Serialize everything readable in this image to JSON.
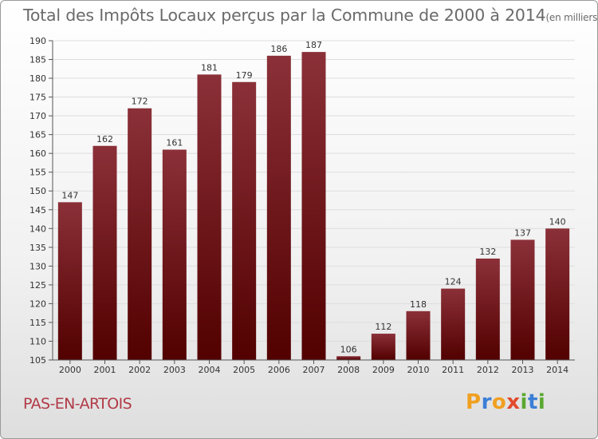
{
  "title": "Total des Impôts Locaux perçus par la Commune de 2000 à 2014",
  "title_unit": "(en milliers d'€)",
  "commune": "PAS-EN-ARTOIS",
  "logo": {
    "text": "Proxiti",
    "letters": [
      {
        "char": "P",
        "color": "#f0a020"
      },
      {
        "char": "r",
        "color": "#3b7fd6"
      },
      {
        "char": "o",
        "color": "#f0a020"
      },
      {
        "char": "x",
        "color": "#e24a2c"
      },
      {
        "char": "i",
        "color": "#5aa832"
      },
      {
        "char": "t",
        "color": "#3b7fd6"
      },
      {
        "char": "i",
        "color": "#5aa832"
      }
    ]
  },
  "colors": {
    "bar_top": "#8b3038",
    "bar_bottom": "#520000",
    "grid": "#dddddd"
  },
  "chart_data": {
    "type": "bar",
    "title": "Total des Impôts Locaux perçus par la Commune de 2000 à 2014",
    "xlabel": "",
    "ylabel": "",
    "ylim": [
      105,
      190
    ],
    "yticks": [
      105,
      110,
      115,
      120,
      125,
      130,
      135,
      140,
      145,
      150,
      155,
      160,
      165,
      170,
      175,
      180,
      185,
      190
    ],
    "grid": true,
    "categories": [
      "2000",
      "2001",
      "2002",
      "2003",
      "2004",
      "2005",
      "2006",
      "2007",
      "2008",
      "2009",
      "2010",
      "2011",
      "2012",
      "2013",
      "2014"
    ],
    "values": [
      147,
      162,
      172,
      161,
      181,
      179,
      186,
      187,
      106,
      112,
      118,
      124,
      132,
      137,
      140
    ]
  }
}
